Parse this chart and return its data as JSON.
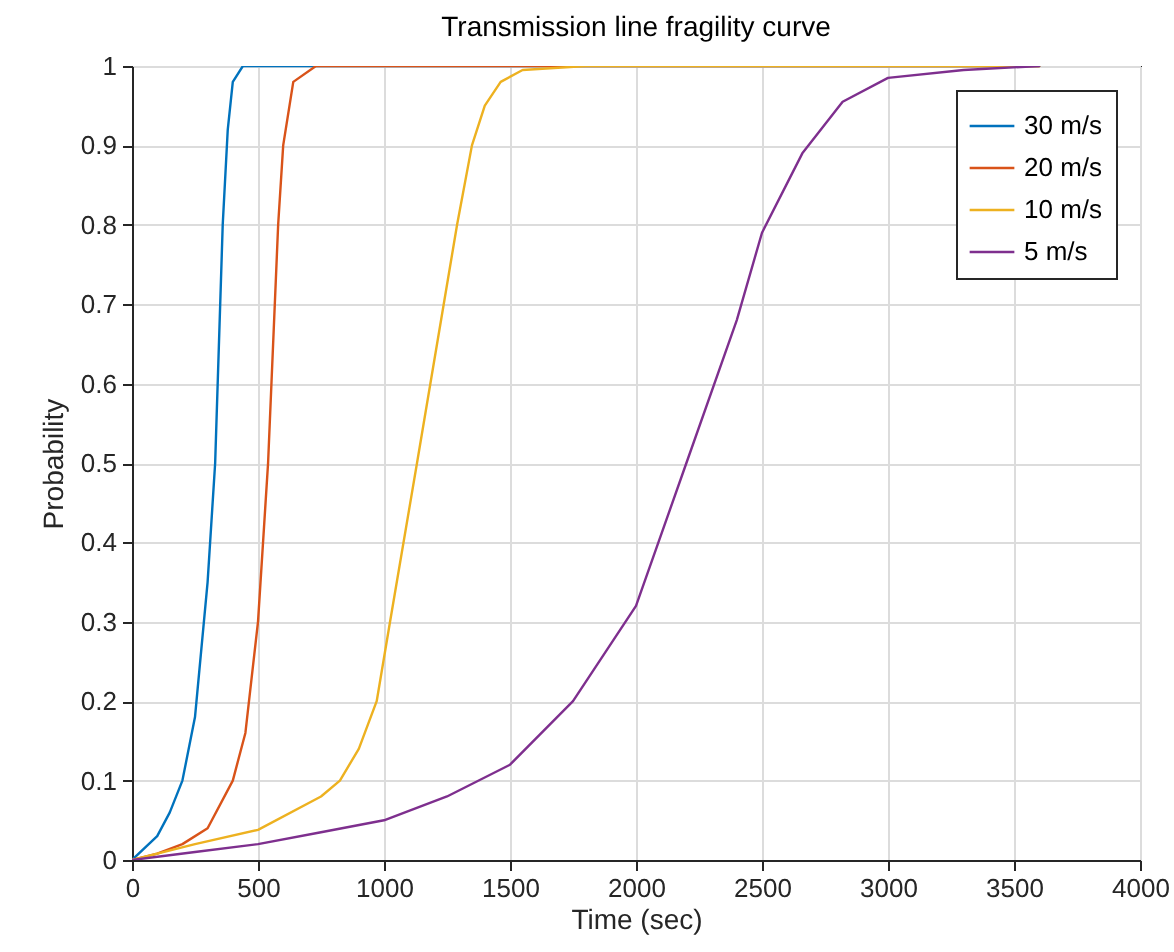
{
  "chart_data": {
    "type": "line",
    "title": "Transmission line fragility curve",
    "xlabel": "Time (sec)",
    "ylabel": "Probability",
    "xlim": [
      0,
      4000
    ],
    "xticks": [
      0,
      500,
      1000,
      1500,
      2000,
      2500,
      3000,
      3500,
      4000
    ],
    "ylim": [
      0,
      1
    ],
    "yticks": [
      0,
      0.1,
      0.2,
      0.3,
      0.4,
      0.5,
      0.6,
      0.7,
      0.8,
      0.9,
      1
    ],
    "grid": true,
    "legend": "top right",
    "line_style": "solid",
    "series": [
      {
        "name": "30 m/s",
        "color": "#0072bd",
        "x": [
          0,
          100,
          150,
          200,
          250,
          300,
          330,
          360,
          380,
          400,
          440,
          3600
        ],
        "values": [
          0,
          0.03,
          0.06,
          0.1,
          0.18,
          0.35,
          0.5,
          0.8,
          0.92,
          0.98,
          1,
          1
        ]
      },
      {
        "name": "20 m/s",
        "color": "#d95319",
        "x": [
          0,
          100,
          200,
          300,
          400,
          450,
          500,
          540,
          580,
          600,
          640,
          730,
          3600
        ],
        "values": [
          0,
          0.008,
          0.02,
          0.04,
          0.1,
          0.16,
          0.3,
          0.5,
          0.8,
          0.9,
          0.98,
          1,
          1
        ]
      },
      {
        "name": "10 m/s",
        "color": "#edb120",
        "x": [
          0,
          250,
          500,
          750,
          825,
          900,
          971,
          1024,
          1131,
          1237,
          1290,
          1349,
          1400,
          1463,
          1550,
          1800,
          3600
        ],
        "values": [
          0,
          0.02,
          0.038,
          0.08,
          0.1,
          0.14,
          0.2,
          0.3,
          0.5,
          0.7,
          0.8,
          0.9,
          0.95,
          0.98,
          0.995,
          1,
          1
        ]
      },
      {
        "name": "5 m/s",
        "color": "#7e2f8e",
        "x": [
          0,
          250,
          500,
          750,
          1000,
          1250,
          1500,
          1750,
          2000,
          2200,
          2400,
          2500,
          2660,
          2820,
          3000,
          3300,
          3600
        ],
        "values": [
          0,
          0.01,
          0.02,
          0.035,
          0.05,
          0.08,
          0.12,
          0.2,
          0.32,
          0.5,
          0.68,
          0.79,
          0.89,
          0.955,
          0.985,
          0.995,
          1
        ]
      }
    ]
  }
}
